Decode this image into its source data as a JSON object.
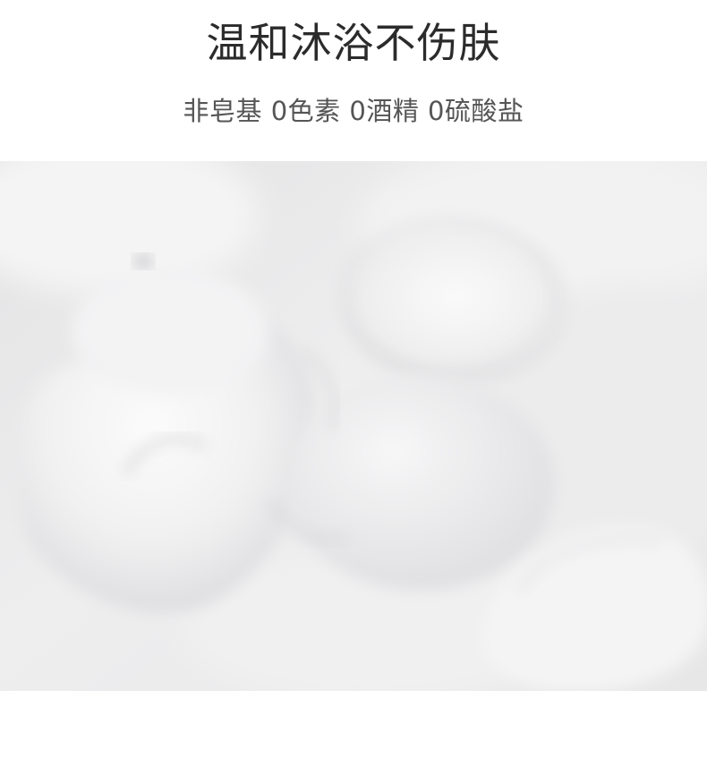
{
  "header": {
    "title": "温和沐浴不伤肤",
    "subtitle": "非皂基 0色素 0酒精 0硫酸盐"
  },
  "photo": {
    "subject": "foam-texture",
    "base_color": "#e9e9ea"
  }
}
